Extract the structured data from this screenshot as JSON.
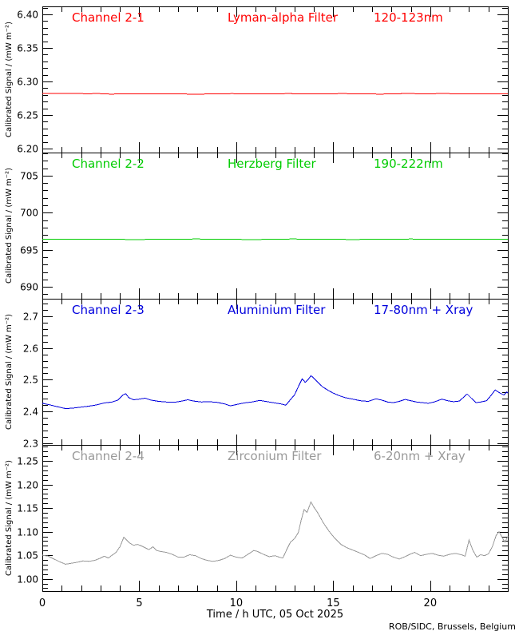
{
  "page": {
    "background": "#ffffff",
    "frame_color": "#000000"
  },
  "chart_data": {
    "type": "line",
    "title": "",
    "xlabel": "Time / h UTC, 05 Oct 2025",
    "credit": "ROB/SIDC, Brussels, Belgium",
    "ylabel": "Calibrated Signal / (mW m⁻²)",
    "xlim": [
      0,
      24
    ],
    "x_major_ticks": [
      0,
      5,
      10,
      15,
      20
    ],
    "x_tick_labels": [
      "0",
      "5",
      "10",
      "15",
      "20"
    ],
    "x_minor_step": 1,
    "grid": false,
    "legend": "none",
    "panels": [
      {
        "channel": "Channel 2-1",
        "filter": "Lyman-alpha Filter",
        "band": "120-123nm",
        "color": "#ff0000",
        "ylim": [
          6.194,
          6.412
        ],
        "yticks": [
          6.2,
          6.25,
          6.3,
          6.35,
          6.4
        ],
        "ytick_labels": [
          "6.20",
          "6.25",
          "6.30",
          "6.35",
          "6.40"
        ],
        "y_minor_step": 0.01,
        "series": [
          [
            0,
            6.282
          ],
          [
            1,
            6.2819
          ],
          [
            2,
            6.282
          ],
          [
            2.4,
            6.2813
          ],
          [
            2.6,
            6.2819
          ],
          [
            3.3,
            6.2818
          ],
          [
            3.5,
            6.281
          ],
          [
            3.9,
            6.2816
          ],
          [
            5,
            6.2818
          ],
          [
            6,
            6.2817
          ],
          [
            7,
            6.2818
          ],
          [
            7.6,
            6.2811
          ],
          [
            8.2,
            6.281
          ],
          [
            8.6,
            6.2817
          ],
          [
            9.4,
            6.2813
          ],
          [
            9.8,
            6.282
          ],
          [
            10,
            6.2814
          ],
          [
            11,
            6.2814
          ],
          [
            11.4,
            6.2818
          ],
          [
            12,
            6.2815
          ],
          [
            12.8,
            6.282
          ],
          [
            13,
            6.2815
          ],
          [
            14,
            6.2816
          ],
          [
            15,
            6.2814
          ],
          [
            15.4,
            6.2821
          ],
          [
            16,
            6.2815
          ],
          [
            17,
            6.2816
          ],
          [
            17.4,
            6.281
          ],
          [
            17.8,
            6.2816
          ],
          [
            18.4,
            6.2818
          ],
          [
            19,
            6.2822
          ],
          [
            19.4,
            6.2815
          ],
          [
            20,
            6.2817
          ],
          [
            20.8,
            6.2822
          ],
          [
            21.2,
            6.2816
          ],
          [
            22,
            6.2818
          ],
          [
            23,
            6.2817
          ],
          [
            24,
            6.2818
          ]
        ]
      },
      {
        "channel": "Channel 2-2",
        "filter": "Herzberg Filter",
        "band": "190-222nm",
        "color": "#00cc00",
        "ylim": [
          688.4,
          708.1
        ],
        "yticks": [
          690,
          695,
          700,
          705
        ],
        "ytick_labels": [
          "690",
          "695",
          "700",
          "705"
        ],
        "y_minor_step": 1,
        "series": [
          [
            0,
            696.42
          ],
          [
            1,
            696.4
          ],
          [
            2,
            696.41
          ],
          [
            3,
            696.44
          ],
          [
            4,
            696.4
          ],
          [
            5,
            696.38
          ],
          [
            6,
            696.43
          ],
          [
            7,
            696.4
          ],
          [
            8,
            696.46
          ],
          [
            8.5,
            696.4
          ],
          [
            9,
            696.42
          ],
          [
            10,
            696.4
          ],
          [
            11,
            696.38
          ],
          [
            12,
            696.43
          ],
          [
            13,
            696.45
          ],
          [
            14,
            696.4
          ],
          [
            15,
            696.42
          ],
          [
            16,
            696.38
          ],
          [
            17,
            696.42
          ],
          [
            18,
            696.4
          ],
          [
            19,
            696.45
          ],
          [
            20,
            696.4
          ],
          [
            21,
            696.42
          ],
          [
            22,
            696.4
          ],
          [
            23,
            696.44
          ],
          [
            24,
            696.42
          ]
        ]
      },
      {
        "channel": "Channel 2-3",
        "filter": "Aluminium Filter",
        "band": "17-80nm + Xray",
        "color": "#0000dd",
        "ylim": [
          2.295,
          2.755
        ],
        "yticks": [
          2.3,
          2.4,
          2.5,
          2.6,
          2.7
        ],
        "ytick_labels": [
          "2.3",
          "2.4",
          "2.5",
          "2.6",
          "2.7"
        ],
        "y_minor_step": 0.02,
        "series": [
          [
            0,
            2.426
          ],
          [
            0.4,
            2.421
          ],
          [
            0.8,
            2.415
          ],
          [
            1.2,
            2.409
          ],
          [
            1.6,
            2.411
          ],
          [
            2.0,
            2.414
          ],
          [
            2.4,
            2.417
          ],
          [
            2.8,
            2.421
          ],
          [
            3.2,
            2.427
          ],
          [
            3.6,
            2.43
          ],
          [
            3.9,
            2.436
          ],
          [
            4.15,
            2.452
          ],
          [
            4.3,
            2.456
          ],
          [
            4.45,
            2.444
          ],
          [
            4.7,
            2.437
          ],
          [
            5.0,
            2.439
          ],
          [
            5.3,
            2.442
          ],
          [
            5.6,
            2.436
          ],
          [
            6.0,
            2.432
          ],
          [
            6.4,
            2.43
          ],
          [
            6.8,
            2.429
          ],
          [
            7.2,
            2.433
          ],
          [
            7.5,
            2.437
          ],
          [
            7.8,
            2.433
          ],
          [
            8.2,
            2.43
          ],
          [
            8.6,
            2.431
          ],
          [
            9.0,
            2.429
          ],
          [
            9.4,
            2.424
          ],
          [
            9.7,
            2.418
          ],
          [
            10.0,
            2.422
          ],
          [
            10.4,
            2.427
          ],
          [
            10.8,
            2.43
          ],
          [
            11.2,
            2.435
          ],
          [
            11.5,
            2.432
          ],
          [
            11.9,
            2.428
          ],
          [
            12.3,
            2.424
          ],
          [
            12.55,
            2.42
          ],
          [
            12.8,
            2.438
          ],
          [
            13.0,
            2.452
          ],
          [
            13.2,
            2.478
          ],
          [
            13.4,
            2.503
          ],
          [
            13.55,
            2.492
          ],
          [
            13.7,
            2.5
          ],
          [
            13.85,
            2.513
          ],
          [
            14.0,
            2.505
          ],
          [
            14.2,
            2.492
          ],
          [
            14.45,
            2.478
          ],
          [
            14.7,
            2.468
          ],
          [
            15.0,
            2.458
          ],
          [
            15.3,
            2.45
          ],
          [
            15.6,
            2.444
          ],
          [
            16.0,
            2.439
          ],
          [
            16.4,
            2.434
          ],
          [
            16.8,
            2.432
          ],
          [
            17.2,
            2.44
          ],
          [
            17.5,
            2.436
          ],
          [
            17.8,
            2.43
          ],
          [
            18.1,
            2.428
          ],
          [
            18.4,
            2.432
          ],
          [
            18.7,
            2.438
          ],
          [
            19.0,
            2.434
          ],
          [
            19.3,
            2.43
          ],
          [
            19.6,
            2.428
          ],
          [
            19.9,
            2.426
          ],
          [
            20.2,
            2.43
          ],
          [
            20.6,
            2.439
          ],
          [
            20.9,
            2.434
          ],
          [
            21.2,
            2.431
          ],
          [
            21.5,
            2.433
          ],
          [
            21.9,
            2.455
          ],
          [
            22.15,
            2.44
          ],
          [
            22.35,
            2.428
          ],
          [
            22.6,
            2.43
          ],
          [
            22.9,
            2.434
          ],
          [
            23.1,
            2.448
          ],
          [
            23.35,
            2.468
          ],
          [
            23.6,
            2.458
          ],
          [
            23.8,
            2.452
          ],
          [
            23.95,
            2.462
          ],
          [
            24,
            2.458
          ]
        ]
      },
      {
        "channel": "Channel 2-4",
        "filter": "Zirconium Filter",
        "band": "6-20nm + Xray",
        "color": "#999999",
        "ylim": [
          0.974,
          1.284
        ],
        "yticks": [
          1.0,
          1.05,
          1.1,
          1.15,
          1.2,
          1.25
        ],
        "ytick_labels": [
          "1.00",
          "1.05",
          "1.10",
          "1.15",
          "1.20",
          "1.25"
        ],
        "y_minor_step": 0.01,
        "series": [
          [
            0,
            1.05
          ],
          [
            0.3,
            1.048
          ],
          [
            0.6,
            1.042
          ],
          [
            0.9,
            1.036
          ],
          [
            1.2,
            1.031
          ],
          [
            1.5,
            1.033
          ],
          [
            1.8,
            1.035
          ],
          [
            2.1,
            1.038
          ],
          [
            2.4,
            1.037
          ],
          [
            2.7,
            1.039
          ],
          [
            3.0,
            1.044
          ],
          [
            3.2,
            1.048
          ],
          [
            3.4,
            1.044
          ],
          [
            3.6,
            1.05
          ],
          [
            3.8,
            1.056
          ],
          [
            4.0,
            1.068
          ],
          [
            4.2,
            1.088
          ],
          [
            4.35,
            1.082
          ],
          [
            4.5,
            1.076
          ],
          [
            4.7,
            1.071
          ],
          [
            4.9,
            1.073
          ],
          [
            5.1,
            1.07
          ],
          [
            5.3,
            1.066
          ],
          [
            5.5,
            1.062
          ],
          [
            5.7,
            1.068
          ],
          [
            5.9,
            1.06
          ],
          [
            6.1,
            1.058
          ],
          [
            6.4,
            1.056
          ],
          [
            6.7,
            1.052
          ],
          [
            7.0,
            1.046
          ],
          [
            7.3,
            1.046
          ],
          [
            7.6,
            1.051
          ],
          [
            7.9,
            1.049
          ],
          [
            8.2,
            1.043
          ],
          [
            8.5,
            1.039
          ],
          [
            8.8,
            1.037
          ],
          [
            9.1,
            1.039
          ],
          [
            9.4,
            1.043
          ],
          [
            9.7,
            1.05
          ],
          [
            10.0,
            1.046
          ],
          [
            10.3,
            1.044
          ],
          [
            10.6,
            1.052
          ],
          [
            10.9,
            1.06
          ],
          [
            11.1,
            1.058
          ],
          [
            11.4,
            1.052
          ],
          [
            11.7,
            1.047
          ],
          [
            12.0,
            1.049
          ],
          [
            12.2,
            1.046
          ],
          [
            12.4,
            1.044
          ],
          [
            12.6,
            1.062
          ],
          [
            12.8,
            1.078
          ],
          [
            13.0,
            1.085
          ],
          [
            13.2,
            1.098
          ],
          [
            13.35,
            1.125
          ],
          [
            13.5,
            1.147
          ],
          [
            13.65,
            1.141
          ],
          [
            13.85,
            1.163
          ],
          [
            14.0,
            1.152
          ],
          [
            14.2,
            1.14
          ],
          [
            14.5,
            1.118
          ],
          [
            14.8,
            1.1
          ],
          [
            15.1,
            1.085
          ],
          [
            15.4,
            1.073
          ],
          [
            15.7,
            1.066
          ],
          [
            16.0,
            1.061
          ],
          [
            16.3,
            1.056
          ],
          [
            16.6,
            1.051
          ],
          [
            16.9,
            1.043
          ],
          [
            17.2,
            1.049
          ],
          [
            17.5,
            1.054
          ],
          [
            17.8,
            1.052
          ],
          [
            18.1,
            1.046
          ],
          [
            18.4,
            1.042
          ],
          [
            18.7,
            1.047
          ],
          [
            19.0,
            1.053
          ],
          [
            19.2,
            1.056
          ],
          [
            19.5,
            1.049
          ],
          [
            19.8,
            1.052
          ],
          [
            20.1,
            1.054
          ],
          [
            20.4,
            1.05
          ],
          [
            20.7,
            1.048
          ],
          [
            21.0,
            1.052
          ],
          [
            21.3,
            1.054
          ],
          [
            21.6,
            1.051
          ],
          [
            21.8,
            1.048
          ],
          [
            22.0,
            1.082
          ],
          [
            22.2,
            1.06
          ],
          [
            22.4,
            1.046
          ],
          [
            22.6,
            1.051
          ],
          [
            22.8,
            1.049
          ],
          [
            23.0,
            1.053
          ],
          [
            23.2,
            1.068
          ],
          [
            23.4,
            1.092
          ],
          [
            23.55,
            1.1
          ],
          [
            23.7,
            1.088
          ],
          [
            23.85,
            1.078
          ],
          [
            24,
            1.09
          ]
        ]
      }
    ]
  }
}
